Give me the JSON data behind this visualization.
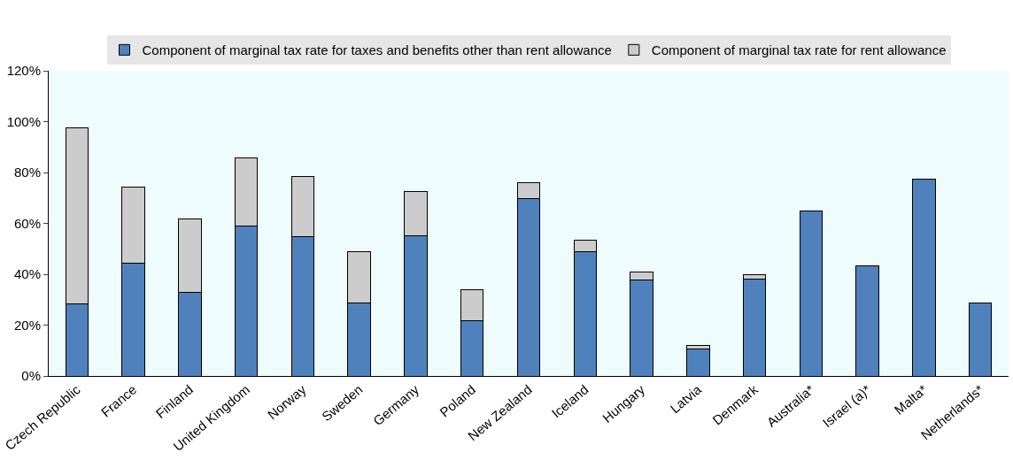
{
  "chart_data": {
    "type": "bar",
    "stacked": true,
    "legend": "top",
    "grid": false,
    "categories": [
      "Czech Republic",
      "France",
      "Finland",
      "United Kingdom",
      "Norway",
      "Sweden",
      "Germany",
      "Poland",
      "New Zealand",
      "Iceland",
      "Hungary",
      "Latvia",
      "Denmark",
      "Australia*",
      "Israel (a)*",
      "Malta*",
      "Netherlands*"
    ],
    "series": [
      {
        "name": "Component of marginal tax rate for taxes and benefits other than rent allowance",
        "color": "#4f81bd",
        "values": [
          28.3,
          44.4,
          32.9,
          58.8,
          54.9,
          28.7,
          55.3,
          21.7,
          69.6,
          49,
          37.8,
          10.5,
          38.1,
          64.7,
          43.4,
          77.3,
          28.7
        ]
      },
      {
        "name": "Component of marginal tax rate for rent allowance",
        "color": "#cccccc",
        "values": [
          69.3,
          29.8,
          29,
          26.9,
          23.5,
          20.3,
          17.1,
          12.2,
          6.3,
          4.5,
          3.1,
          1.4,
          1.8,
          null,
          null,
          null,
          null
        ]
      }
    ],
    "ylim": [
      0,
      120
    ],
    "yticks": [
      {
        "value": 0,
        "label": "0%"
      },
      {
        "value": 20,
        "label": "20%"
      },
      {
        "value": 40,
        "label": "40%"
      },
      {
        "value": 60,
        "label": "60%"
      },
      {
        "value": 80,
        "label": "80%"
      },
      {
        "value": 100,
        "label": "100%"
      },
      {
        "value": 120,
        "label": "120%"
      }
    ]
  }
}
